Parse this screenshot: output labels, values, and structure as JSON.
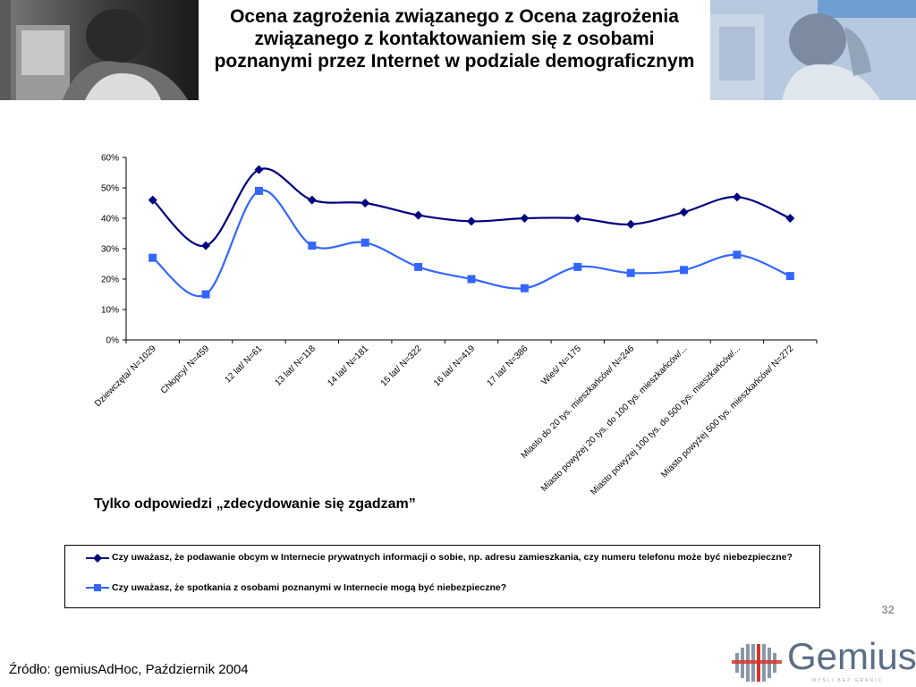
{
  "title": "Ocena zagrożenia związanego z Ocena zagrożenia związanego z kontaktowaniem się z osobami poznanymi przez Internet w podziale demograficznym",
  "subtitle": "Tylko odpowiedzi „zdecydowanie się zgadzam”",
  "page_number": "32",
  "source": "Źródło: gemiusAdHoc, Październik 2004",
  "logo": {
    "text": "Gemius",
    "tagline": "MYŚLI BEZ GRANIC"
  },
  "colors": {
    "series1": "#000080",
    "series2": "#3366ff",
    "title": "#000000"
  },
  "chart_data": {
    "type": "line",
    "categories": [
      "Dziewczęta/ N=1029",
      "Chłopcy/ N=459",
      "12 lat/ N=61",
      "13 lat/ N=118",
      "14 lat/ N=181",
      "15 lat/ N=322",
      "16 lat/ N=419",
      "17 lat/ N=386",
      "Wieś/ N=175",
      "Miasto do 20 tys. mieszkańców/ N=246",
      "Miasto powyżej 20 tys. do 100 tys. mieszkańców/...",
      "Miasto powyżej 100 tys. do 500 tys. mieszkańców/...",
      "Miasto powyżej 500 tys. mieszkańców/ N=272"
    ],
    "series": [
      {
        "name": "Czy uważasz, że podawanie obcym w Internecie prywatnych informacji o sobie, np. adresu zamieszkania, czy numeru telefonu może być niebezpieczne?",
        "marker": "diamond",
        "values": [
          46,
          31,
          56,
          46,
          45,
          41,
          39,
          40,
          40,
          38,
          42,
          47,
          40
        ]
      },
      {
        "name": "Czy uważasz, że spotkania z osobami poznanymi w Internecie mogą być niebezpieczne?",
        "marker": "square",
        "values": [
          27,
          15,
          49,
          31,
          32,
          24,
          20,
          17,
          24,
          22,
          23,
          28,
          21
        ]
      }
    ],
    "yticks": [
      "0%",
      "10%",
      "20%",
      "30%",
      "40%",
      "50%",
      "60%"
    ],
    "ylim": [
      0,
      60
    ],
    "grid": false,
    "legend_position": "bottom"
  }
}
